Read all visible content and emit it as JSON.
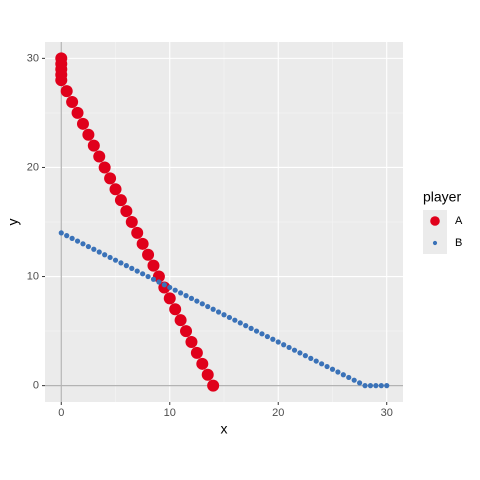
{
  "chart_data": {
    "type": "scatter",
    "x_label": "x",
    "y_label": "y",
    "legend_title": "player",
    "legend_position": "right",
    "grid": true,
    "xlim": [
      -1.5,
      31.5
    ],
    "ylim": [
      -1.5,
      31.5
    ],
    "xticks": [
      0,
      10,
      20,
      30
    ],
    "yticks": [
      0,
      10,
      20,
      30
    ],
    "x_minor_ticks": [
      5,
      15,
      25
    ],
    "y_minor_ticks": [
      5,
      15,
      25
    ],
    "reference_lines": {
      "x": [
        0
      ],
      "y": [
        0
      ]
    },
    "series": [
      {
        "name": "A",
        "color": "#e0001b",
        "size": 6,
        "x": [
          0,
          0,
          0,
          0,
          0,
          0.5,
          1,
          1.5,
          2,
          2.5,
          3,
          3.5,
          4,
          4.5,
          5,
          5.5,
          6,
          6.5,
          7,
          7.5,
          8,
          8.5,
          9,
          9.5,
          10,
          10.5,
          11,
          11.5,
          12,
          12.5,
          13,
          13.5,
          14
        ],
        "values": [
          30,
          29.5,
          29,
          28.5,
          28,
          27,
          26,
          25,
          24,
          23,
          22,
          21,
          20,
          19,
          18,
          17,
          16,
          15,
          14,
          13,
          12,
          11,
          10,
          9,
          8,
          7,
          6,
          5,
          4,
          3,
          2,
          1,
          0
        ]
      },
      {
        "name": "B",
        "color": "#3a72b8",
        "size": 2.6,
        "x": [
          0,
          0.5,
          1,
          1.5,
          2,
          2.5,
          3,
          3.5,
          4,
          4.5,
          5,
          5.5,
          6,
          6.5,
          7,
          7.5,
          8,
          8.5,
          9,
          9.5,
          10,
          10.5,
          11,
          11.5,
          12,
          12.5,
          13,
          13.5,
          14,
          14.5,
          15,
          15.5,
          16,
          16.5,
          17,
          17.5,
          18,
          18.5,
          19,
          19.5,
          20,
          20.5,
          21,
          21.5,
          22,
          22.5,
          23,
          23.5,
          24,
          24.5,
          25,
          25.5,
          26,
          26.5,
          27,
          27.5,
          28,
          28.5,
          29,
          29.5,
          30
        ],
        "values": [
          14,
          13.75,
          13.5,
          13.25,
          13,
          12.75,
          12.5,
          12.25,
          12,
          11.75,
          11.5,
          11.25,
          11,
          10.75,
          10.5,
          10.25,
          10,
          9.75,
          9.5,
          9.25,
          9,
          8.75,
          8.5,
          8.25,
          8,
          7.75,
          7.5,
          7.25,
          7,
          6.75,
          6.5,
          6.25,
          6,
          5.75,
          5.5,
          5.25,
          5,
          4.75,
          4.5,
          4.25,
          4,
          3.75,
          3.5,
          3.25,
          3,
          2.75,
          2.5,
          2.25,
          2,
          1.75,
          1.5,
          1.25,
          1,
          0.75,
          0.5,
          0.25,
          0,
          0,
          0,
          0,
          0
        ]
      }
    ]
  }
}
